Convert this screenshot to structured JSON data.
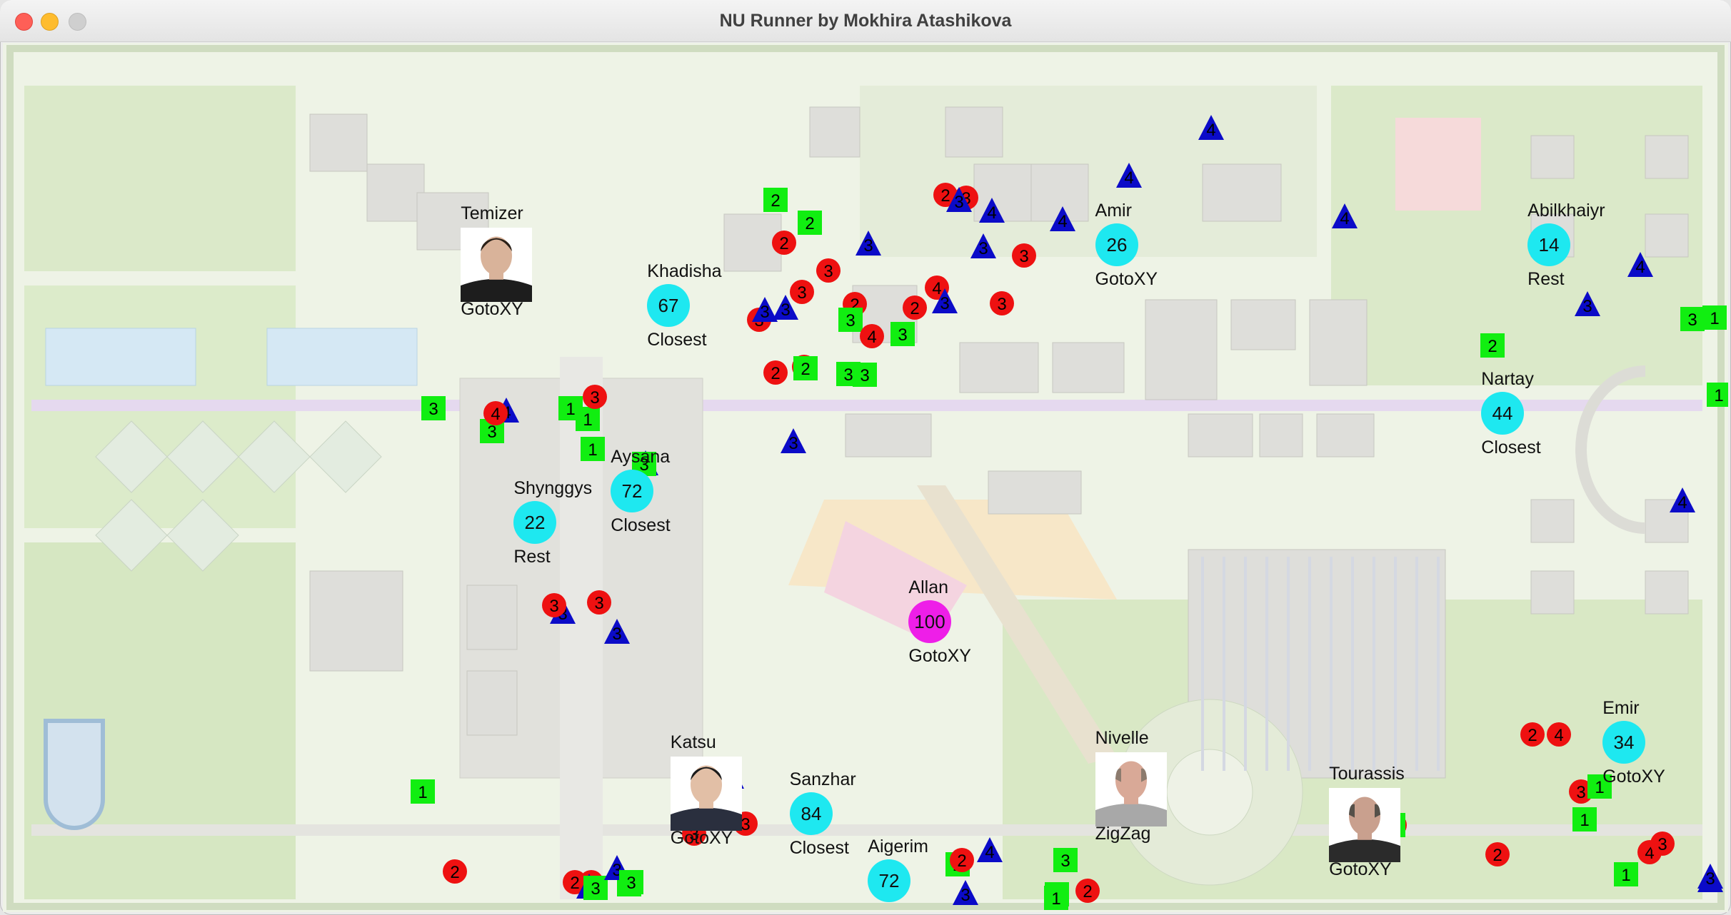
{
  "window": {
    "title": "NU Runner by Mokhira Atashikova"
  },
  "colors": {
    "runner": "#1ee8f0",
    "leader": "#ee1ee8",
    "red_item": "#ee1111",
    "green_item": "#11ee11",
    "blue_item": "#0b0bc8"
  },
  "players": [
    {
      "name": "Khadisha",
      "score": "67",
      "strategy": "Closest",
      "avatar": "circle"
    },
    {
      "name": "Amir",
      "score": "26",
      "strategy": "GotoXY",
      "avatar": "circle"
    },
    {
      "name": "Abilkhaiyr",
      "score": "14",
      "strategy": "Rest",
      "avatar": "circle"
    },
    {
      "name": "Nartay",
      "score": "44",
      "strategy": "Closest",
      "avatar": "circle"
    },
    {
      "name": "Aysana",
      "score": "72",
      "strategy": "Closest",
      "avatar": "circle"
    },
    {
      "name": "Shynggys",
      "score": "22",
      "strategy": "Rest",
      "avatar": "circle"
    },
    {
      "name": "Allan",
      "score": "100",
      "strategy": "GotoXY",
      "avatar": "circle-leader"
    },
    {
      "name": "Sanzhar",
      "score": "84",
      "strategy": "Closest",
      "avatar": "circle"
    },
    {
      "name": "Emir",
      "score": "34",
      "strategy": "GotoXY",
      "avatar": "circle"
    },
    {
      "name": "Aigerim",
      "score": "72",
      "strategy": "",
      "avatar": "circle"
    },
    {
      "name": "Temizer",
      "strategy": "GotoXY",
      "avatar": "photo"
    },
    {
      "name": "Katsu",
      "strategy": "GotoXY",
      "avatar": "photo"
    },
    {
      "name": "Nivelle",
      "strategy": "ZigZag",
      "avatar": "photo"
    },
    {
      "name": "Tourassis",
      "strategy": "GotoXY",
      "avatar": "photo"
    }
  ],
  "items": [
    {
      "shape": "square",
      "value": "2"
    },
    {
      "shape": "square",
      "value": "2"
    },
    {
      "shape": "circle",
      "value": "2"
    },
    {
      "shape": "circle",
      "value": "3"
    },
    {
      "shape": "circle",
      "value": "3"
    },
    {
      "shape": "circle",
      "value": "3"
    },
    {
      "shape": "triangle",
      "value": "3"
    },
    {
      "shape": "circle",
      "value": "2"
    },
    {
      "shape": "circle",
      "value": "2"
    },
    {
      "shape": "triangle",
      "value": "3"
    },
    {
      "shape": "circle",
      "value": "2"
    },
    {
      "shape": "circle",
      "value": "3"
    },
    {
      "shape": "triangle",
      "value": "3"
    },
    {
      "shape": "triangle",
      "value": "4"
    },
    {
      "shape": "triangle",
      "value": "4"
    },
    {
      "shape": "circle",
      "value": "3"
    },
    {
      "shape": "circle",
      "value": "3"
    },
    {
      "shape": "circle",
      "value": "2"
    },
    {
      "shape": "square",
      "value": "3"
    },
    {
      "shape": "triangle",
      "value": "3"
    },
    {
      "shape": "circle",
      "value": "4"
    },
    {
      "shape": "triangle",
      "value": "3"
    },
    {
      "shape": "circle",
      "value": "4"
    },
    {
      "shape": "square",
      "value": "3"
    },
    {
      "shape": "square",
      "value": "3"
    },
    {
      "shape": "circle",
      "value": "2"
    },
    {
      "shape": "square",
      "value": "2"
    },
    {
      "shape": "square",
      "value": "3"
    },
    {
      "shape": "triangle",
      "value": "4"
    },
    {
      "shape": "triangle",
      "value": "3"
    },
    {
      "shape": "triangle",
      "value": "4"
    },
    {
      "shape": "triangle",
      "value": "4"
    },
    {
      "shape": "triangle",
      "value": "4"
    },
    {
      "shape": "triangle",
      "value": "3"
    },
    {
      "shape": "triangle",
      "value": "4"
    },
    {
      "shape": "triangle",
      "value": "3"
    },
    {
      "shape": "square",
      "value": "3"
    },
    {
      "shape": "square",
      "value": "1"
    },
    {
      "shape": "square",
      "value": "2"
    },
    {
      "shape": "square",
      "value": "1"
    },
    {
      "shape": "triangle",
      "value": "4"
    },
    {
      "shape": "square",
      "value": "3"
    },
    {
      "shape": "circle",
      "value": "4"
    },
    {
      "shape": "square",
      "value": "3"
    },
    {
      "shape": "square",
      "value": "1"
    },
    {
      "shape": "circle",
      "value": "3"
    },
    {
      "shape": "square",
      "value": "1"
    },
    {
      "shape": "square",
      "value": "1"
    },
    {
      "shape": "triangle",
      "value": "3"
    },
    {
      "shape": "square",
      "value": "3"
    },
    {
      "shape": "triangle",
      "value": "3"
    },
    {
      "shape": "circle",
      "value": "3"
    },
    {
      "shape": "circle",
      "value": "3"
    },
    {
      "shape": "triangle",
      "value": "3"
    },
    {
      "shape": "triangle",
      "value": "3"
    },
    {
      "shape": "circle",
      "value": "2"
    },
    {
      "shape": "circle",
      "value": "4"
    },
    {
      "shape": "circle",
      "value": "3"
    },
    {
      "shape": "square",
      "value": "1"
    },
    {
      "shape": "square",
      "value": "1"
    },
    {
      "shape": "square",
      "value": "1"
    },
    {
      "shape": "circle",
      "value": "2"
    },
    {
      "shape": "circle",
      "value": "4"
    },
    {
      "shape": "circle",
      "value": "3"
    },
    {
      "shape": "square",
      "value": "1"
    },
    {
      "shape": "triangle",
      "value": "3"
    },
    {
      "shape": "circle",
      "value": "2"
    },
    {
      "shape": "circle",
      "value": "3"
    },
    {
      "shape": "circle",
      "value": "2"
    },
    {
      "shape": "circle",
      "value": "3"
    },
    {
      "shape": "circle",
      "value": "2"
    },
    {
      "shape": "circle",
      "value": "4"
    },
    {
      "shape": "triangle",
      "value": "3"
    },
    {
      "shape": "square",
      "value": "3"
    },
    {
      "shape": "square",
      "value": "3"
    },
    {
      "shape": "triangle",
      "value": "3"
    },
    {
      "shape": "square",
      "value": "2"
    },
    {
      "shape": "square",
      "value": "3"
    },
    {
      "shape": "triangle",
      "value": "4"
    },
    {
      "shape": "square",
      "value": "1"
    },
    {
      "shape": "circle",
      "value": "2"
    },
    {
      "shape": "triangle",
      "value": "3"
    },
    {
      "shape": "square",
      "value": "3"
    },
    {
      "shape": "square",
      "value": "1"
    },
    {
      "shape": "circle",
      "value": "3"
    },
    {
      "shape": "square",
      "value": "1"
    },
    {
      "shape": "triangle",
      "value": "3"
    }
  ]
}
